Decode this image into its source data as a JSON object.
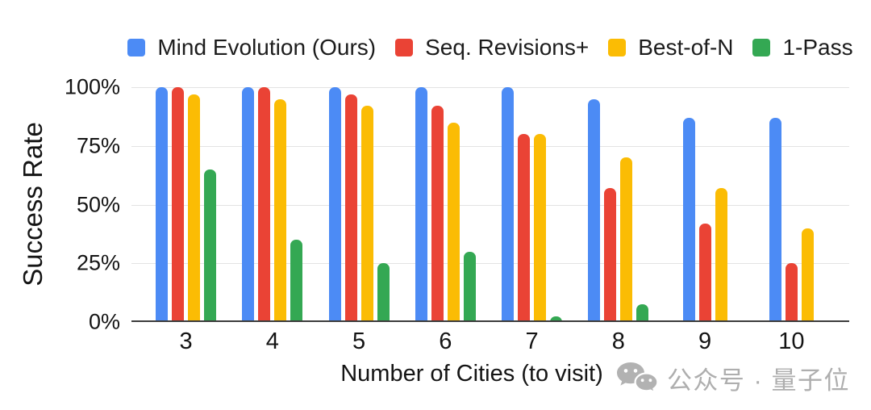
{
  "chart_data": {
    "type": "bar",
    "title": "",
    "xlabel": "Number of Cities (to visit)",
    "ylabel": "Success Rate",
    "categories": [
      "3",
      "4",
      "5",
      "6",
      "7",
      "8",
      "9",
      "10"
    ],
    "series": [
      {
        "name": "Mind Evolution (Ours)",
        "color": "#4C8BF5",
        "values": [
          100,
          100,
          100,
          100,
          100,
          95,
          87,
          87
        ]
      },
      {
        "name": "Seq. Revisions+",
        "color": "#EA4335",
        "values": [
          100,
          100,
          97,
          92,
          80,
          57,
          42,
          25
        ]
      },
      {
        "name": "Best-of-N",
        "color": "#FBBC04",
        "values": [
          97,
          95,
          92,
          85,
          80,
          70,
          57,
          40
        ]
      },
      {
        "name": "1-Pass",
        "color": "#34A853",
        "values": [
          65,
          35,
          25,
          30,
          2.5,
          7.5,
          0,
          0
        ]
      }
    ],
    "ylim": [
      0,
      100
    ],
    "yticks": [
      {
        "value": 0,
        "label": "0%"
      },
      {
        "value": 25,
        "label": "25%"
      },
      {
        "value": 50,
        "label": "50%"
      },
      {
        "value": 75,
        "label": "75%"
      },
      {
        "value": 100,
        "label": "100%"
      }
    ],
    "grid": true,
    "legend_position": "top"
  },
  "watermark": {
    "text": "公众号 · 量子位",
    "icon": "wechat-icon",
    "color": "#aeaeae"
  },
  "colors": {
    "gridline": "#e3e3e3",
    "axis_line": "#3c3c3c",
    "text": "#141414",
    "background": "#ffffff"
  }
}
